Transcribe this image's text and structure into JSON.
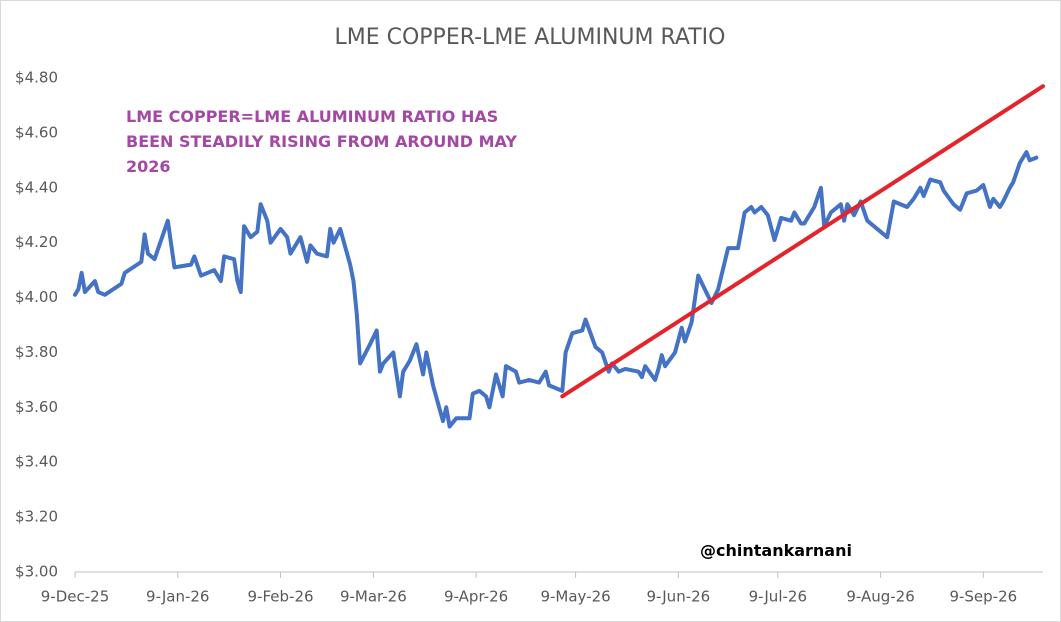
{
  "chart_data": {
    "type": "line",
    "title": "LME COPPER-LME ALUMINUM RATIO",
    "annotation": "LME COPPER=LME ALUMINUM RATIO HAS BEEN STEADILY RISING FROM AROUND MAY 2026",
    "annotation_color": "#a349a4",
    "watermark": "@chintankarnani",
    "grid": false,
    "xlim": [
      "2025-12-09",
      "2026-09-27"
    ],
    "xticks": [
      {
        "value": "2025-12-09",
        "label": "9-Dec-25"
      },
      {
        "value": "2026-01-09",
        "label": "9-Jan-26"
      },
      {
        "value": "2026-02-09",
        "label": "9-Feb-26"
      },
      {
        "value": "2026-03-09",
        "label": "9-Mar-26"
      },
      {
        "value": "2026-04-09",
        "label": "9-Apr-26"
      },
      {
        "value": "2026-05-09",
        "label": "9-May-26"
      },
      {
        "value": "2026-06-09",
        "label": "9-Jun-26"
      },
      {
        "value": "2026-07-09",
        "label": "9-Jul-26"
      },
      {
        "value": "2026-08-09",
        "label": "9-Aug-26"
      },
      {
        "value": "2026-09-09",
        "label": "9-Sep-26"
      }
    ],
    "ylim": [
      3.0,
      4.8
    ],
    "yticks": [
      {
        "value": 3.0,
        "label": "$3.00"
      },
      {
        "value": 3.2,
        "label": "$3.20"
      },
      {
        "value": 3.4,
        "label": "$3.40"
      },
      {
        "value": 3.6,
        "label": "$3.60"
      },
      {
        "value": 3.8,
        "label": "$3.80"
      },
      {
        "value": 4.0,
        "label": "$4.00"
      },
      {
        "value": 4.2,
        "label": "$4.20"
      },
      {
        "value": 4.4,
        "label": "$4.40"
      },
      {
        "value": 4.6,
        "label": "$4.60"
      },
      {
        "value": 4.8,
        "label": "$4.80"
      }
    ],
    "x": [
      "2025-12-09",
      "2025-12-10",
      "2025-12-11",
      "2025-12-12",
      "2025-12-15",
      "2025-12-16",
      "2025-12-18",
      "2025-12-23",
      "2025-12-24",
      "2025-12-29",
      "2025-12-30",
      "2025-12-31",
      "2026-01-02",
      "2026-01-06",
      "2026-01-08",
      "2026-01-13",
      "2026-01-14",
      "2026-01-16",
      "2026-01-20",
      "2026-01-22",
      "2026-01-23",
      "2026-01-26",
      "2026-01-27",
      "2026-01-28",
      "2026-01-29",
      "2026-01-31",
      "2026-02-02",
      "2026-02-03",
      "2026-02-05",
      "2026-02-06",
      "2026-02-09",
      "2026-02-11",
      "2026-02-12",
      "2026-02-15",
      "2026-02-17",
      "2026-02-18",
      "2026-02-20",
      "2026-02-23",
      "2026-02-24",
      "2026-02-25",
      "2026-02-27",
      "2026-03-02",
      "2026-03-03",
      "2026-03-04",
      "2026-03-05",
      "2026-03-08",
      "2026-03-10",
      "2026-03-11",
      "2026-03-12",
      "2026-03-15",
      "2026-03-17",
      "2026-03-18",
      "2026-03-20",
      "2026-03-22",
      "2026-03-24",
      "2026-03-25",
      "2026-03-27",
      "2026-03-30",
      "2026-03-31",
      "2026-04-01",
      "2026-04-03",
      "2026-04-07",
      "2026-04-08",
      "2026-04-10",
      "2026-04-12",
      "2026-04-13",
      "2026-04-15",
      "2026-04-17",
      "2026-04-18",
      "2026-04-21",
      "2026-04-22",
      "2026-04-25",
      "2026-04-28",
      "2026-04-30",
      "2026-05-01",
      "2026-05-05",
      "2026-05-06",
      "2026-05-08",
      "2026-05-11",
      "2026-05-12",
      "2026-05-15",
      "2026-05-17",
      "2026-05-19",
      "2026-05-20",
      "2026-05-22",
      "2026-05-24",
      "2026-05-28",
      "2026-05-29",
      "2026-05-30",
      "2026-06-02",
      "2026-06-03",
      "2026-06-04",
      "2026-06-05",
      "2026-06-08",
      "2026-06-10",
      "2026-06-11",
      "2026-06-13",
      "2026-06-15",
      "2026-06-17",
      "2026-06-19",
      "2026-06-21",
      "2026-06-24",
      "2026-06-27",
      "2026-06-29",
      "2026-07-01",
      "2026-07-02",
      "2026-07-04",
      "2026-07-06",
      "2026-07-08",
      "2026-07-10",
      "2026-07-13",
      "2026-07-14",
      "2026-07-16",
      "2026-07-17",
      "2026-07-20",
      "2026-07-22",
      "2026-07-23",
      "2026-07-25",
      "2026-07-28",
      "2026-07-29",
      "2026-07-30",
      "2026-08-01",
      "2026-08-03",
      "2026-08-05",
      "2026-08-07",
      "2026-08-11",
      "2026-08-13",
      "2026-08-17",
      "2026-08-19",
      "2026-08-21",
      "2026-08-22",
      "2026-08-24",
      "2026-08-27",
      "2026-08-28",
      "2026-08-31",
      "2026-09-02",
      "2026-09-04",
      "2026-09-07",
      "2026-09-09",
      "2026-09-11",
      "2026-09-12",
      "2026-09-14",
      "2026-09-15",
      "2026-09-17",
      "2026-09-18",
      "2026-09-20",
      "2026-09-22",
      "2026-09-23",
      "2026-09-25"
    ],
    "series": [
      {
        "color": "#4472c4",
        "values": [
          4.01,
          4.03,
          4.09,
          4.02,
          4.06,
          4.02,
          4.01,
          4.05,
          4.09,
          4.13,
          4.23,
          4.16,
          4.14,
          4.28,
          4.11,
          4.12,
          4.15,
          4.08,
          4.1,
          4.06,
          4.15,
          4.14,
          4.06,
          4.02,
          4.26,
          4.22,
          4.24,
          4.34,
          4.28,
          4.2,
          4.25,
          4.22,
          4.16,
          4.22,
          4.13,
          4.19,
          4.16,
          4.15,
          4.25,
          4.2,
          4.25,
          4.12,
          4.06,
          3.94,
          3.76,
          3.83,
          3.88,
          3.73,
          3.76,
          3.8,
          3.64,
          3.73,
          3.77,
          3.83,
          3.72,
          3.8,
          3.68,
          3.55,
          3.6,
          3.53,
          3.56,
          3.56,
          3.65,
          3.66,
          3.64,
          3.6,
          3.72,
          3.64,
          3.75,
          3.73,
          3.69,
          3.7,
          3.69,
          3.73,
          3.68,
          3.66,
          3.8,
          3.87,
          3.88,
          3.92,
          3.82,
          3.8,
          3.73,
          3.76,
          3.73,
          3.74,
          3.73,
          3.71,
          3.75,
          3.7,
          3.74,
          3.79,
          3.75,
          3.8,
          3.89,
          3.84,
          3.91,
          4.08,
          4.03,
          3.98,
          4.03,
          4.18,
          4.18,
          4.31,
          4.33,
          4.31,
          4.33,
          4.3,
          4.21,
          4.29,
          4.28,
          4.31,
          4.27,
          4.27,
          4.33,
          4.4,
          4.26,
          4.31,
          4.34,
          4.28,
          4.34,
          4.3,
          4.35,
          4.28,
          4.26,
          4.22,
          4.35,
          4.33,
          4.36,
          4.4,
          4.37,
          4.43,
          4.42,
          4.39,
          4.34,
          4.32,
          4.38,
          4.39,
          4.41,
          4.33,
          4.36,
          4.33,
          4.35,
          4.4,
          4.42,
          4.49,
          4.53,
          4.5,
          4.51
        ]
      }
    ],
    "trendline": {
      "color": "#e3242b",
      "x": [
        "2026-05-05",
        "2026-09-27"
      ],
      "values": [
        3.64,
        4.77
      ]
    }
  }
}
